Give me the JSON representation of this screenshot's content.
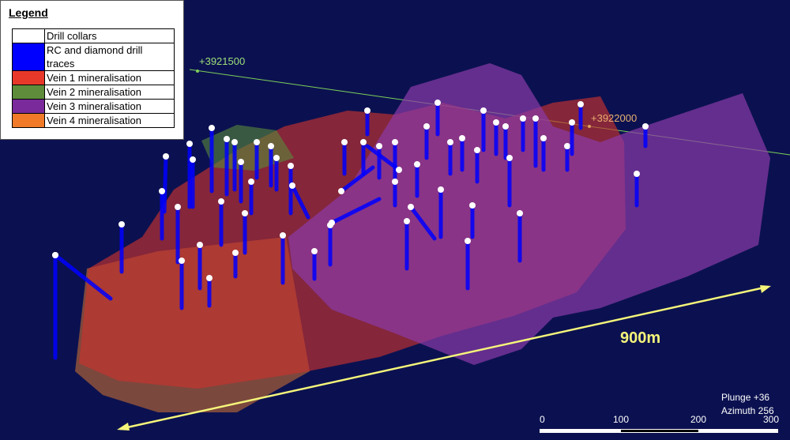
{
  "legend": {
    "title": "Legend",
    "items": [
      {
        "label": "Drill collars",
        "color": "#ffffff"
      },
      {
        "label": "RC and diamond drill traces",
        "color": "#0000ff"
      },
      {
        "label": "Vein 1 mineralisation",
        "color": "#e8382a"
      },
      {
        "label": "Vein 2 mineralisation",
        "color": "#5e8c3a"
      },
      {
        "label": "Vein 3 mineralisation",
        "color": "#7a2a9a"
      },
      {
        "label": "Vein 4 mineralisation",
        "color": "#f07a28"
      }
    ]
  },
  "grid_labels": [
    "+3921500",
    "+3922000"
  ],
  "distance_label": "900m",
  "view": {
    "plunge": "Plunge +36",
    "azimuth": "Azimuth 256"
  },
  "scale_bar": {
    "labels": [
      "0",
      "100",
      "200",
      "300"
    ]
  }
}
